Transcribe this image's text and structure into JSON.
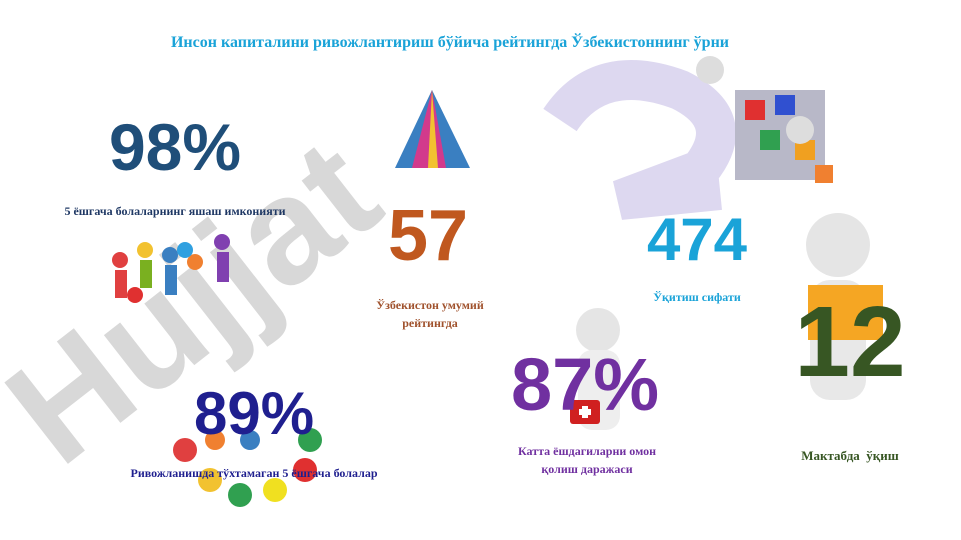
{
  "header": {
    "title": "Инсон капиталини ривожлантириш бўйича рейтингда Ўзбекистоннинг ўрни"
  },
  "watermark": "Hujjat",
  "stats": [
    {
      "value": "98%",
      "label": "5 ёшгача болаларнинг яшаш имконияти"
    },
    {
      "value": "57",
      "label": "Ўзбекистон умумий рейтингда"
    },
    {
      "value": "474",
      "label": "Ўқитиш сифати"
    },
    {
      "value": "12",
      "label": "Мактабда  ўқиш"
    },
    {
      "value": "87%",
      "label": "Катта ёшдагиларни омон қолиш даражаси"
    },
    {
      "value": "89%",
      "label": "Ривожланишда тўхтамаган 5 ёшгача болалар"
    }
  ]
}
